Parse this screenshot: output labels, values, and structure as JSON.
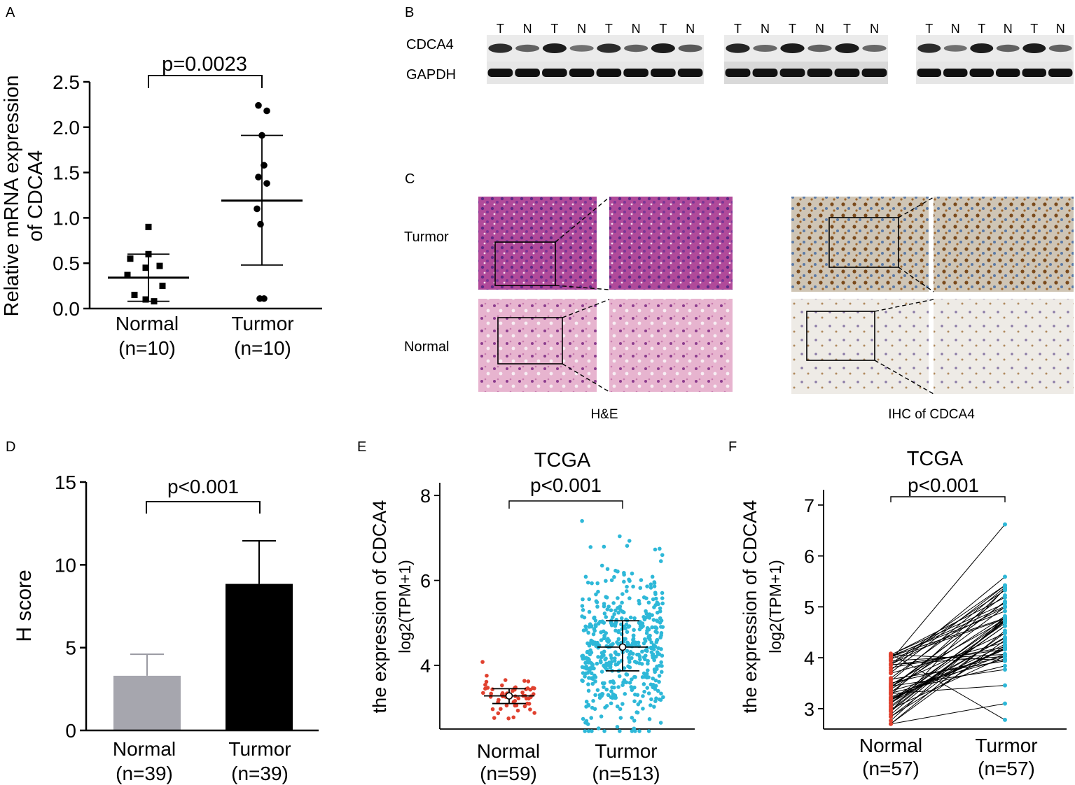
{
  "panel_letters": [
    "A",
    "B",
    "C",
    "D",
    "E",
    "F"
  ],
  "colors": {
    "normal_bar": "#a6a6ae",
    "tumor_bar": "#000000",
    "tcga_normal": "#e0412f",
    "tcga_tumor": "#2eb8d8"
  },
  "panel_b": {
    "lane_labels": [
      "T",
      "N",
      "T",
      "N",
      "T",
      "N",
      "T",
      "N"
    ],
    "blot2_lanes": [
      "T",
      "N",
      "T",
      "N",
      "T",
      "N"
    ],
    "blot3_lanes": [
      "T",
      "N",
      "T",
      "N",
      "T",
      "N"
    ],
    "rows": [
      "CDCA4",
      "GAPDH"
    ]
  },
  "panel_c": {
    "rows": [
      "Turmor",
      "Normal"
    ],
    "stains": [
      "H&E",
      "IHC of CDCA4"
    ]
  },
  "chart_data": [
    {
      "panel": "A",
      "type": "scatter",
      "ylabel": "Relative mRNA expression of CDCA4",
      "ylabel_lines": [
        "Relative mRNA expression",
        "of CDCA4"
      ],
      "ylim": [
        0,
        2.5
      ],
      "yticks": [
        "0.0",
        "0.5",
        "1.0",
        "1.5",
        "2.0",
        "2.5"
      ],
      "categories": [
        "Normal",
        "Turmor"
      ],
      "category_n": [
        "(n=10)",
        "(n=10)"
      ],
      "annotation": "p=0.0023",
      "series": [
        {
          "name": "Normal",
          "marker": "square",
          "values": [
            0.9,
            0.6,
            0.55,
            0.47,
            0.45,
            0.37,
            0.25,
            0.15,
            0.1,
            0.08
          ],
          "mean": 0.34,
          "sd_low": 0.08,
          "sd_high": 0.6
        },
        {
          "name": "Turmor",
          "marker": "circle",
          "values": [
            2.24,
            2.18,
            1.91,
            1.58,
            1.45,
            1.38,
            1.1,
            0.93,
            0.11,
            0.11
          ],
          "mean": 1.19,
          "sd_low": 0.48,
          "sd_high": 1.91
        }
      ]
    },
    {
      "panel": "D",
      "type": "bar",
      "ylabel": "H score",
      "ylim": [
        0,
        15
      ],
      "yticks": [
        "0",
        "5",
        "10",
        "15"
      ],
      "categories": [
        "Normal",
        "Turmor"
      ],
      "category_n": [
        "(n=39)",
        "(n=39)"
      ],
      "annotation": "p<0.001",
      "values": [
        3.3,
        8.85
      ],
      "errors_upper": [
        4.6,
        11.45
      ]
    },
    {
      "panel": "E",
      "type": "scatter",
      "title": "TCGA",
      "ylabel_lines": [
        "the expression of CDCA4",
        "log2(TPM+1)"
      ],
      "ylim": [
        2.5,
        8.3
      ],
      "yticks": [
        "4",
        "6",
        "8"
      ],
      "categories": [
        "Normal",
        "Turmor"
      ],
      "category_n": [
        "(n=59)",
        "(n=513)"
      ],
      "annotation": "p<0.001",
      "series": [
        {
          "name": "Normal",
          "n": 59,
          "median": 3.28,
          "q1": 3.1,
          "q3": 3.45,
          "min": 2.75,
          "max": 4.08
        },
        {
          "name": "Turmor",
          "n": 513,
          "median": 4.43,
          "q1": 3.87,
          "q3": 5.05,
          "min": 2.45,
          "max": 7.4
        }
      ]
    },
    {
      "panel": "F",
      "type": "line",
      "title": "TCGA",
      "ylabel_lines": [
        "the expression of CDCA4",
        "log2(TPM+1)"
      ],
      "ylim": [
        2.6,
        7.3
      ],
      "yticks": [
        "3",
        "4",
        "5",
        "6",
        "7"
      ],
      "categories": [
        "Normal",
        "Turmor"
      ],
      "category_n": [
        "(n=57)",
        "(n=57)"
      ],
      "annotation": "p<0.001",
      "paired": {
        "n": 57,
        "normal_range": [
          2.7,
          4.08
        ],
        "tumor_range": [
          2.78,
          6.62
        ]
      }
    }
  ]
}
